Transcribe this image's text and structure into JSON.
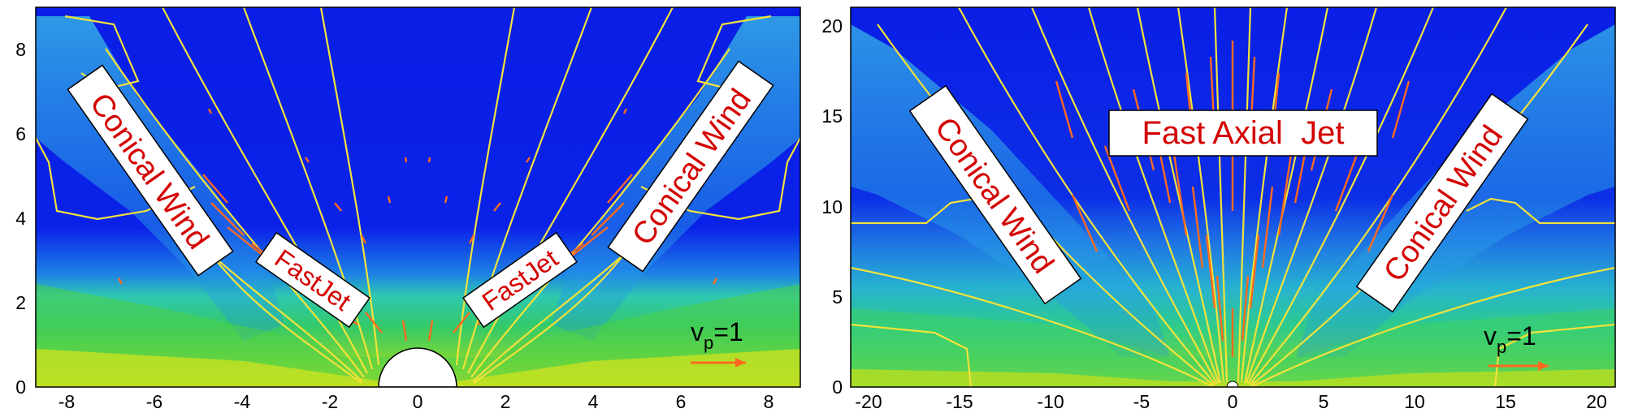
{
  "colors": {
    "background_flow": "#0a1ee6",
    "field_lines": "#f2e23a",
    "velocity_arrows": "#ff6a1f",
    "label_text": "#d40000",
    "label_box": "#ffffff"
  },
  "chart_data": [
    {
      "type": "contour",
      "xlim": [
        -9,
        9
      ],
      "ylim": [
        0,
        9
      ],
      "x_ticks": [
        "-8",
        "-6",
        "-4",
        "-2",
        "0",
        "2",
        "4",
        "6",
        "8"
      ],
      "y_ticks": [
        "0",
        "2",
        "4",
        "6",
        "8"
      ],
      "annotations": [
        "Conical Wind",
        "FastJet",
        "FastJet",
        "Conical Wind"
      ],
      "scale_label": "v",
      "scale_sub": "p",
      "scale_value": "=1"
    },
    {
      "type": "contour",
      "xlim": [
        -21,
        21
      ],
      "ylim": [
        0,
        21
      ],
      "x_ticks": [
        "-20",
        "-15",
        "-10",
        "-5",
        "0",
        "5",
        "10",
        "15",
        "20"
      ],
      "y_ticks": [
        "0",
        "5",
        "10",
        "15",
        "20"
      ],
      "annotations": [
        "Conical Wind",
        "Fast Axial  Jet",
        "Conical Wind"
      ],
      "scale_label": "v",
      "scale_sub": "p",
      "scale_value": "=1"
    }
  ]
}
